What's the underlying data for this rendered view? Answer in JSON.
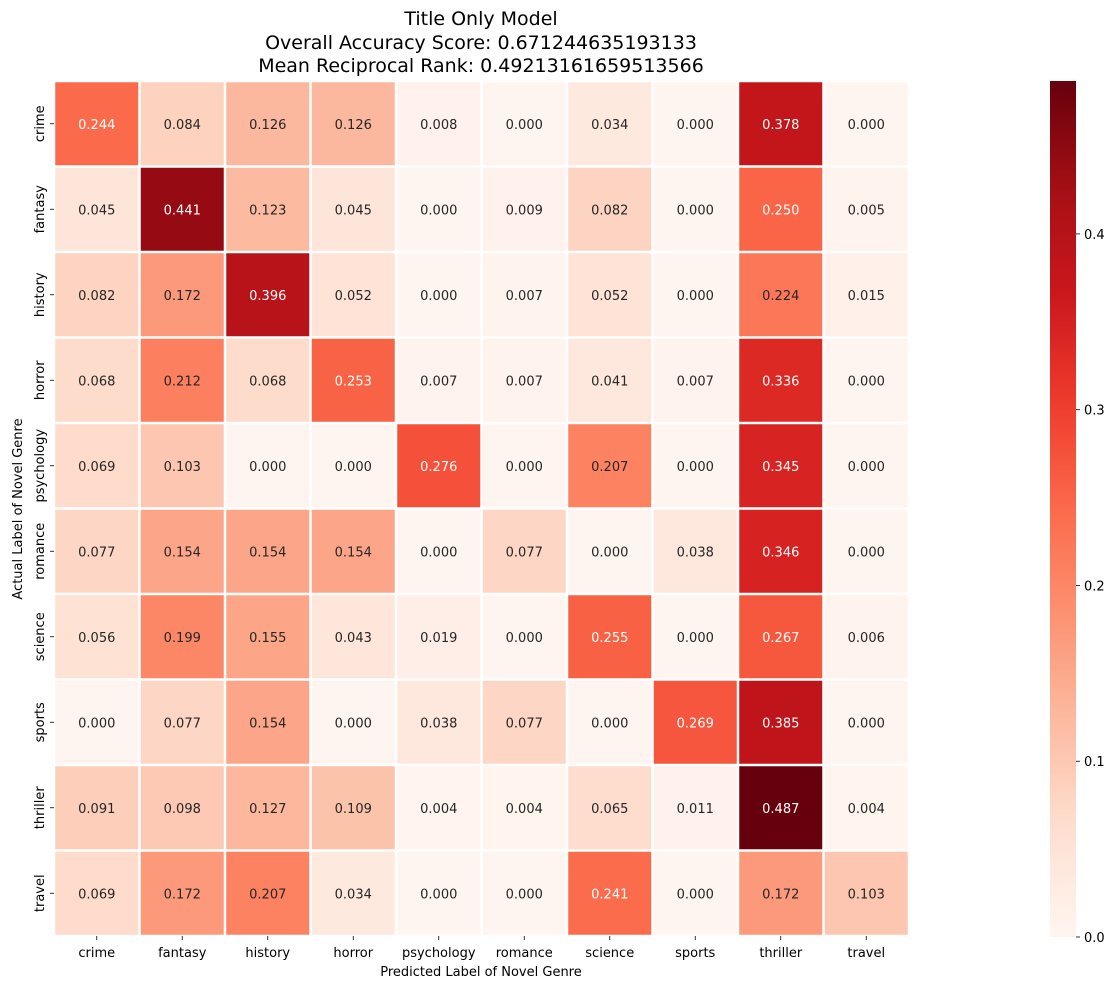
{
  "chart_data": {
    "type": "heatmap",
    "title": [
      "Title Only Model",
      "Overall Accuracy Score: 0.671244635193133",
      "Mean Reciprocal Rank: 0.49213161659513566"
    ],
    "xlabel": "Predicted Label of Novel Genre",
    "ylabel": "Actual Label of Novel Genre",
    "x_categories": [
      "crime",
      "fantasy",
      "history",
      "horror",
      "psychology",
      "romance",
      "science",
      "sports",
      "thriller",
      "travel"
    ],
    "y_categories": [
      "crime",
      "fantasy",
      "history",
      "horror",
      "psychology",
      "romance",
      "science",
      "sports",
      "thriller",
      "travel"
    ],
    "values": [
      [
        0.244,
        0.084,
        0.126,
        0.126,
        0.008,
        0.0,
        0.034,
        0.0,
        0.378,
        0.0
      ],
      [
        0.045,
        0.441,
        0.123,
        0.045,
        0.0,
        0.009,
        0.082,
        0.0,
        0.25,
        0.005
      ],
      [
        0.082,
        0.172,
        0.396,
        0.052,
        0.0,
        0.007,
        0.052,
        0.0,
        0.224,
        0.015
      ],
      [
        0.068,
        0.212,
        0.068,
        0.253,
        0.007,
        0.007,
        0.041,
        0.007,
        0.336,
        0.0
      ],
      [
        0.069,
        0.103,
        0.0,
        0.0,
        0.276,
        0.0,
        0.207,
        0.0,
        0.345,
        0.0
      ],
      [
        0.077,
        0.154,
        0.154,
        0.154,
        0.0,
        0.077,
        0.0,
        0.038,
        0.346,
        0.0
      ],
      [
        0.056,
        0.199,
        0.155,
        0.043,
        0.019,
        0.0,
        0.255,
        0.0,
        0.267,
        0.006
      ],
      [
        0.0,
        0.077,
        0.154,
        0.0,
        0.038,
        0.077,
        0.0,
        0.269,
        0.385,
        0.0
      ],
      [
        0.091,
        0.098,
        0.127,
        0.109,
        0.004,
        0.004,
        0.065,
        0.011,
        0.487,
        0.004
      ],
      [
        0.069,
        0.172,
        0.207,
        0.034,
        0.0,
        0.0,
        0.241,
        0.0,
        0.172,
        0.103
      ]
    ],
    "value_format": "0.000",
    "colormap": "Reds",
    "color_range": [
      0,
      0.487
    ],
    "colorbar_ticks": [
      0.0,
      0.1,
      0.2,
      0.3,
      0.4
    ],
    "colorbar_tick_labels": [
      "0.0",
      "0.1",
      "0.2",
      "0.3",
      "0.4"
    ],
    "cell_separator_color": "#ffffff",
    "legend": "colorbar-right",
    "grid": false
  }
}
